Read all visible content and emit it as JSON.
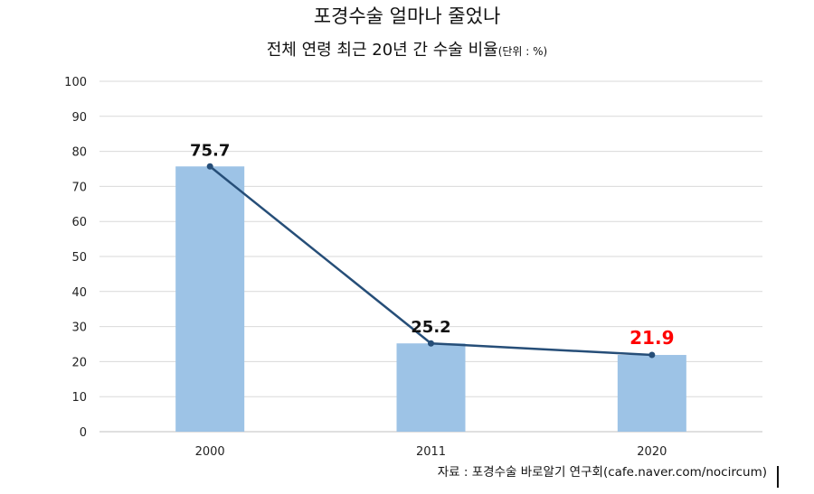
{
  "chart_data": {
    "type": "bar",
    "title": "포경수술 얼마나 줄었나",
    "subtitle": "전체 연령 최근 20년 간 수술 비율",
    "unit": "(단위 : %)",
    "categories": [
      "2000",
      "2011",
      "2020"
    ],
    "values": [
      75.7,
      25.2,
      21.9
    ],
    "data_labels": [
      "75.7",
      "25.2",
      "21.9"
    ],
    "line_overlay": true,
    "ylim": [
      0,
      100
    ],
    "yticks": [
      "0",
      "10",
      "20",
      "30",
      "40",
      "50",
      "60",
      "70",
      "80",
      "90",
      "100"
    ],
    "grid": true,
    "xlabel": "",
    "ylabel": "",
    "colors": {
      "bar": "#9dc3e6",
      "line": "#264e78",
      "label": "#111111",
      "highlight_label": "#ff0000"
    },
    "source": "자료 : 포경수술 바로알기 연구회(cafe.naver.com/nocircum)"
  }
}
